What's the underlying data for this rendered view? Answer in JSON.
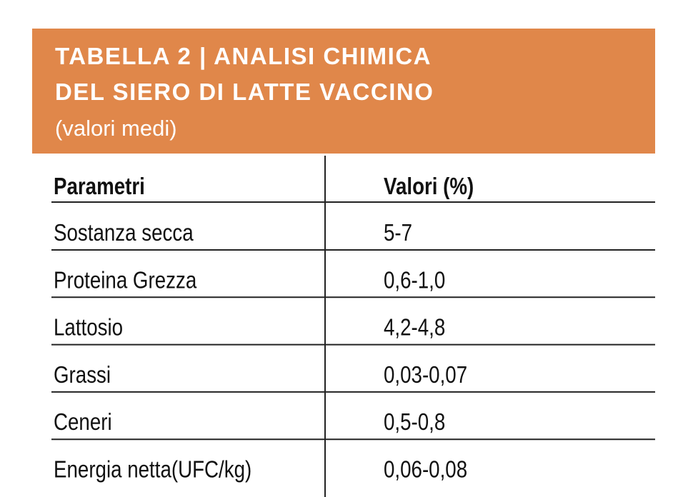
{
  "header": {
    "title_lines": [
      "TABELLA 2 | ANALISI CHIMICA",
      "DEL SIERO DI LATTE VACCINO"
    ],
    "subtitle": "(valori medi)"
  },
  "table": {
    "columns": [
      "Parametri",
      "Valori (%)"
    ],
    "rows": [
      [
        "Sostanza secca",
        "5-7"
      ],
      [
        "Proteina Grezza",
        "0,6-1,0"
      ],
      [
        "Lattosio",
        "4,2-4,8"
      ],
      [
        "Grassi",
        "0,03-0,07"
      ],
      [
        "Ceneri",
        "0,5-0,8"
      ],
      [
        "Energia netta(UFC/kg)",
        "0,06-0,08"
      ]
    ]
  }
}
